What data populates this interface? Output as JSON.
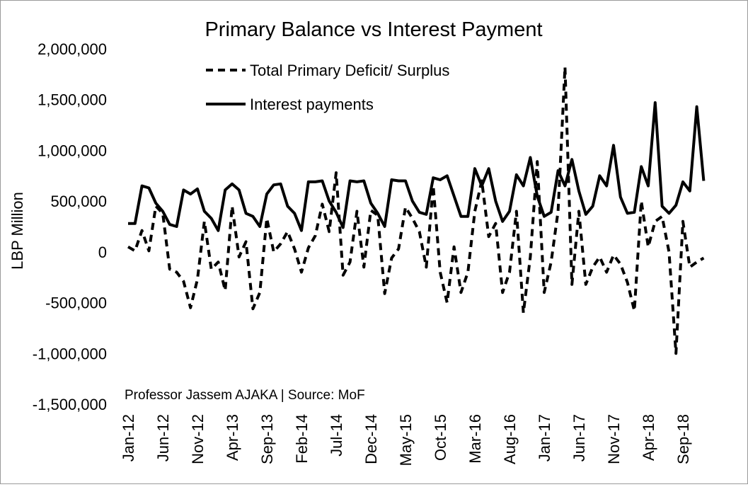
{
  "chart_data": {
    "type": "line",
    "title": "Primary Balance vs Interest Payment",
    "ylabel": "LBP Million",
    "ylim": [
      -1500000,
      2000000
    ],
    "yticks": [
      -1500000,
      -1000000,
      -500000,
      0,
      500000,
      1000000,
      1500000,
      2000000
    ],
    "ytick_labels": [
      "-1,500,000",
      "-1,000,000",
      "-500,000",
      "0",
      "500,000",
      "1,000,000",
      "1,500,000",
      "2,000,000"
    ],
    "xtick_labels": [
      "Jan-12",
      "Jun-12",
      "Nov-12",
      "Apr-13",
      "Sep-13",
      "Feb-14",
      "Jul-14",
      "Dec-14",
      "May-15",
      "Oct-15",
      "Mar-16",
      "Aug-16",
      "Jan-17",
      "Jun-17",
      "Nov-17",
      "Apr-18",
      "Sep-18"
    ],
    "x_start": "Jan-12",
    "x_end": "Dec-18",
    "grid": false,
    "legend": "top-center",
    "annotation": "Professor Jassem AJAKA | Source: MoF",
    "series": [
      {
        "name": "Total Primary Deficit/ Surplus",
        "style": "dashed",
        "color": "#000000",
        "values": [
          50000,
          10000,
          210000,
          10000,
          450000,
          380000,
          -170000,
          -200000,
          -290000,
          -550000,
          -270000,
          300000,
          -170000,
          -100000,
          -380000,
          450000,
          -50000,
          100000,
          -560000,
          -400000,
          330000,
          0,
          80000,
          200000,
          30000,
          -200000,
          40000,
          160000,
          470000,
          200000,
          780000,
          -230000,
          -100000,
          400000,
          -150000,
          410000,
          360000,
          -410000,
          -60000,
          30000,
          440000,
          330000,
          200000,
          -150000,
          650000,
          -200000,
          -500000,
          50000,
          -400000,
          -200000,
          400000,
          700000,
          150000,
          280000,
          -400000,
          -200000,
          400000,
          -600000,
          -50000,
          890000,
          -400000,
          -100000,
          400000,
          1820000,
          -320000,
          400000,
          -320000,
          -150000,
          -50000,
          -200000,
          -30000,
          -120000,
          -300000,
          -580000,
          500000,
          50000,
          300000,
          350000,
          0,
          -1000000,
          300000,
          -150000,
          -100000,
          -60000
        ]
      },
      {
        "name": "Interest payments",
        "style": "solid",
        "color": "#000000",
        "values": [
          280000,
          280000,
          650000,
          630000,
          480000,
          400000,
          270000,
          250000,
          610000,
          570000,
          620000,
          400000,
          330000,
          210000,
          610000,
          670000,
          610000,
          380000,
          350000,
          250000,
          570000,
          660000,
          670000,
          450000,
          380000,
          210000,
          690000,
          690000,
          700000,
          500000,
          390000,
          240000,
          700000,
          690000,
          700000,
          480000,
          380000,
          250000,
          710000,
          700000,
          700000,
          500000,
          390000,
          370000,
          730000,
          710000,
          750000,
          550000,
          350000,
          350000,
          820000,
          650000,
          820000,
          500000,
          300000,
          400000,
          760000,
          650000,
          930000,
          550000,
          350000,
          390000,
          800000,
          650000,
          910000,
          600000,
          370000,
          450000,
          750000,
          650000,
          1050000,
          540000,
          380000,
          390000,
          840000,
          650000,
          1470000,
          450000,
          380000,
          460000,
          690000,
          600000,
          1430000,
          700000
        ]
      }
    ]
  }
}
